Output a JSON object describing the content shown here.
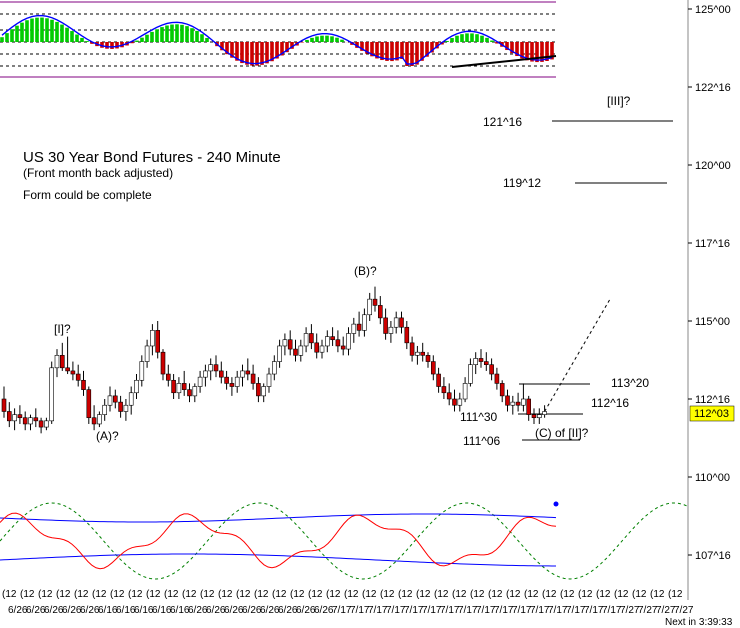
{
  "chart_data": {
    "type": "candlestick",
    "title": "US 30 Year Bond Futures - 240 Minute",
    "subtitle": "(Front month back adjusted)",
    "note": "Form could be complete",
    "y_axis": {
      "ticks": [
        "125^00",
        "122^16",
        "120^00",
        "117^16",
        "115^00",
        "112^16",
        "110^00",
        "107^16"
      ],
      "tick_values": [
        125.0,
        122.5,
        120.0,
        117.5,
        115.0,
        112.5,
        110.0,
        107.5
      ],
      "current_price_label": "112^03",
      "current_price": 112.09
    },
    "wave_labels": [
      "[I]?",
      "(A)?",
      "(B)?",
      "(C) of [II]?",
      "[III]?"
    ],
    "targets": [
      {
        "label": "121^16",
        "value": 121.5
      },
      {
        "label": "119^12",
        "value": 119.375
      },
      {
        "label": "113^20",
        "value": 113.625
      },
      {
        "label": "112^16",
        "value": 112.5
      },
      {
        "label": "111^30",
        "value": 111.94
      },
      {
        "label": "111^06",
        "value": 111.19
      }
    ],
    "x_axis": {
      "time_labels": [
        "(12",
        "(12",
        "(12",
        "(12",
        "(12",
        "(12",
        "(12",
        "(12",
        "(12",
        "(12",
        "(12",
        "(12",
        "(12",
        "(12",
        "(12",
        "(12",
        "(12",
        "(12",
        "(12",
        "(12",
        "(12",
        "(12",
        "(12",
        "(12",
        "(12",
        "(12",
        "(12",
        "(12",
        "(12",
        "(12",
        "(12",
        "(12",
        "(12",
        "(12",
        "(12",
        "(12",
        "(12",
        "(12"
      ],
      "date_labels": [
        "6/26",
        "6/26",
        "6/26",
        "6/26",
        "6/26",
        "6/16",
        "6/16",
        "6/16",
        "6/16",
        "6/16",
        "6/26",
        "6/26",
        "6/26",
        "6/26",
        "6/26",
        "6/26",
        "6/26",
        "6/26",
        "7/17",
        "7/17",
        "7/17",
        "7/17",
        "7/17",
        "7/17",
        "7/17",
        "7/17",
        "7/17",
        "7/17",
        "7/17",
        "7/17",
        "7/17",
        "7/17",
        "7/17",
        "7/17",
        "7/27",
        "7/27",
        "7/27",
        "7/27"
      ]
    },
    "status_text": "Next in 3:39:33",
    "candles": [
      [
        112.5,
        112.9,
        111.9,
        112.1
      ],
      [
        112.1,
        112.4,
        111.6,
        111.8
      ],
      [
        111.8,
        112.2,
        111.5,
        112.0
      ],
      [
        112.0,
        112.3,
        111.7,
        111.9
      ],
      [
        111.9,
        112.1,
        111.5,
        111.7
      ],
      [
        111.7,
        112.0,
        111.5,
        111.9
      ],
      [
        111.9,
        112.2,
        111.6,
        111.8
      ],
      [
        111.8,
        111.9,
        111.4,
        111.6
      ],
      [
        111.6,
        111.9,
        111.5,
        111.8
      ],
      [
        111.8,
        113.7,
        111.7,
        113.5
      ],
      [
        113.5,
        114.1,
        113.2,
        113.9
      ],
      [
        113.9,
        114.3,
        113.4,
        113.5
      ],
      [
        113.5,
        114.5,
        113.3,
        113.4
      ],
      [
        113.4,
        113.7,
        113.1,
        113.3
      ],
      [
        113.3,
        113.6,
        112.9,
        113.1
      ],
      [
        113.1,
        113.4,
        112.6,
        112.8
      ],
      [
        112.8,
        112.9,
        111.7,
        111.9
      ],
      [
        111.9,
        112.3,
        111.5,
        111.7
      ],
      [
        111.7,
        112.1,
        111.6,
        112.0
      ],
      [
        112.0,
        112.5,
        111.8,
        112.3
      ],
      [
        112.3,
        112.9,
        112.1,
        112.6
      ],
      [
        112.6,
        112.8,
        112.2,
        112.4
      ],
      [
        112.4,
        112.6,
        111.9,
        112.1
      ],
      [
        112.1,
        112.5,
        111.8,
        112.3
      ],
      [
        112.3,
        112.9,
        112.0,
        112.7
      ],
      [
        112.7,
        113.3,
        112.5,
        113.1
      ],
      [
        113.1,
        113.9,
        112.9,
        113.7
      ],
      [
        113.7,
        114.4,
        113.5,
        114.2
      ],
      [
        114.2,
        114.9,
        113.9,
        114.7
      ],
      [
        114.7,
        115.0,
        113.8,
        114.0
      ],
      [
        114.0,
        114.1,
        113.1,
        113.3
      ],
      [
        113.3,
        113.6,
        112.9,
        113.1
      ],
      [
        113.1,
        113.3,
        112.5,
        112.7
      ],
      [
        112.7,
        113.2,
        112.5,
        113.0
      ],
      [
        113.0,
        113.4,
        112.6,
        112.8
      ],
      [
        112.8,
        113.0,
        112.4,
        112.6
      ],
      [
        112.6,
        113.0,
        112.4,
        112.9
      ],
      [
        112.9,
        113.4,
        112.7,
        113.2
      ],
      [
        113.2,
        113.6,
        112.9,
        113.4
      ],
      [
        113.4,
        113.8,
        113.1,
        113.6
      ],
      [
        113.6,
        113.9,
        113.2,
        113.4
      ],
      [
        113.4,
        113.7,
        113.0,
        113.2
      ],
      [
        113.2,
        113.4,
        112.8,
        113.0
      ],
      [
        113.0,
        113.2,
        112.6,
        112.9
      ],
      [
        112.9,
        113.4,
        112.7,
        113.2
      ],
      [
        113.2,
        113.6,
        112.9,
        113.4
      ],
      [
        113.4,
        113.8,
        113.1,
        113.3
      ],
      [
        113.3,
        113.6,
        112.8,
        113.0
      ],
      [
        113.0,
        113.2,
        112.4,
        112.6
      ],
      [
        112.6,
        113.0,
        112.4,
        112.9
      ],
      [
        112.9,
        113.5,
        112.7,
        113.3
      ],
      [
        113.3,
        113.9,
        113.1,
        113.7
      ],
      [
        113.7,
        114.4,
        113.5,
        114.2
      ],
      [
        114.2,
        114.6,
        113.9,
        114.4
      ],
      [
        114.4,
        114.7,
        113.9,
        114.1
      ],
      [
        114.1,
        114.4,
        113.7,
        113.9
      ],
      [
        113.9,
        114.4,
        113.7,
        114.2
      ],
      [
        114.2,
        114.8,
        114.0,
        114.6
      ],
      [
        114.6,
        114.9,
        114.1,
        114.3
      ],
      [
        114.3,
        114.6,
        113.8,
        114.0
      ],
      [
        114.0,
        114.4,
        113.8,
        114.2
      ],
      [
        114.2,
        114.7,
        114.0,
        114.5
      ],
      [
        114.5,
        114.8,
        114.2,
        114.4
      ],
      [
        114.4,
        114.7,
        114.0,
        114.2
      ],
      [
        114.2,
        114.5,
        113.9,
        114.1
      ],
      [
        114.1,
        114.8,
        113.9,
        114.6
      ],
      [
        114.6,
        115.1,
        114.3,
        114.9
      ],
      [
        114.9,
        115.3,
        114.5,
        114.7
      ],
      [
        114.7,
        115.4,
        114.5,
        115.2
      ],
      [
        115.2,
        115.9,
        115.0,
        115.7
      ],
      [
        115.7,
        116.1,
        115.3,
        115.5
      ],
      [
        115.5,
        115.8,
        114.9,
        115.1
      ],
      [
        115.1,
        115.4,
        114.4,
        114.6
      ],
      [
        114.6,
        115.0,
        114.3,
        114.8
      ],
      [
        114.8,
        115.3,
        114.6,
        115.1
      ],
      [
        115.1,
        115.3,
        114.6,
        114.8
      ],
      [
        114.8,
        115.0,
        114.1,
        114.3
      ],
      [
        114.3,
        114.5,
        113.7,
        113.9
      ],
      [
        113.9,
        114.2,
        113.6,
        114.0
      ],
      [
        114.0,
        114.3,
        113.7,
        113.9
      ],
      [
        113.9,
        114.0,
        113.5,
        113.7
      ],
      [
        113.7,
        113.9,
        113.1,
        113.3
      ],
      [
        113.3,
        113.5,
        112.7,
        112.9
      ],
      [
        112.9,
        113.2,
        112.5,
        112.7
      ],
      [
        112.7,
        113.0,
        112.3,
        112.5
      ],
      [
        112.5,
        112.8,
        112.1,
        112.3
      ],
      [
        112.3,
        112.7,
        112.1,
        112.5
      ],
      [
        112.5,
        113.2,
        112.4,
        113.0
      ],
      [
        113.0,
        113.8,
        112.9,
        113.6
      ],
      [
        113.6,
        114.0,
        113.3,
        113.8
      ],
      [
        113.8,
        114.1,
        113.5,
        113.7
      ],
      [
        113.7,
        114.0,
        113.4,
        113.6
      ],
      [
        113.6,
        113.8,
        113.1,
        113.3
      ],
      [
        113.3,
        113.5,
        112.8,
        113.0
      ],
      [
        113.0,
        113.1,
        112.4,
        112.6
      ],
      [
        112.6,
        112.8,
        112.1,
        112.3
      ],
      [
        112.3,
        112.6,
        112.0,
        112.4
      ],
      [
        112.4,
        112.7,
        112.1,
        112.3
      ],
      [
        112.3,
        113.0,
        112.1,
        112.5
      ],
      [
        112.5,
        112.6,
        111.8,
        112.0
      ],
      [
        112.0,
        112.2,
        111.7,
        111.9
      ],
      [
        111.9,
        112.2,
        111.7,
        112.0
      ],
      [
        112.0,
        112.3,
        111.9,
        112.1
      ]
    ],
    "forecast_line_to": 115.7,
    "legend": []
  }
}
